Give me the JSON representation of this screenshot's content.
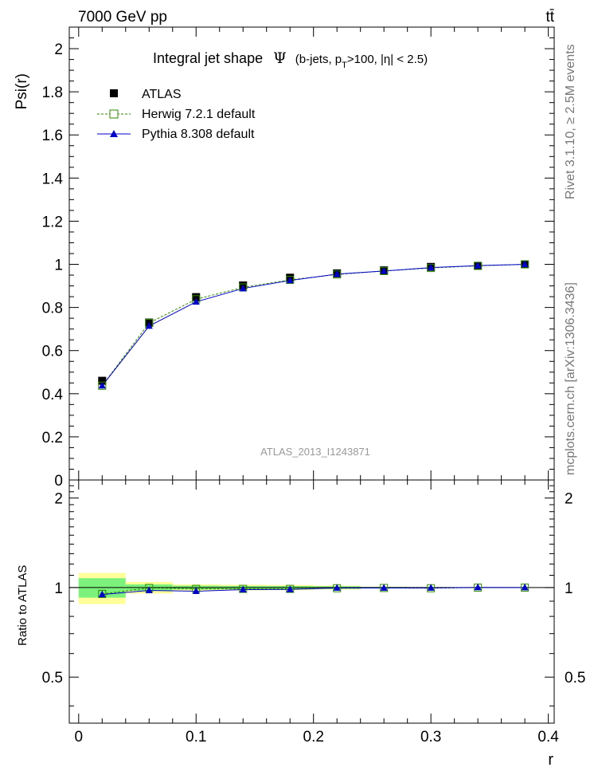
{
  "header": {
    "energy_label": "7000 GeV pp",
    "process_label": "tt̄"
  },
  "side": {
    "rivet": "Rivet 3.1.10, ≥ 2.5M events",
    "mcplots": "mcplots.cern.ch [arXiv:1306.3436]"
  },
  "colors": {
    "atlas": "#000000",
    "herwig": "#2e8b00",
    "pythia": "#0000cc",
    "band_inner": "#7cf27c",
    "band_outer": "#ffff99"
  },
  "chart_data": [
    {
      "type": "scatter",
      "name": "main",
      "title_main": "Integral jet shape",
      "title_symbol": "Ψ",
      "title_sel_open": "(b-jets, p",
      "title_sel_sub": "T",
      "title_sel_close": ">100, |η| < 2.5)",
      "xlabel": "r",
      "ylabel": "Psi(r)",
      "watermark": "ATLAS_2013_I1243871",
      "xlim": [
        -0.008,
        0.405
      ],
      "ylim": [
        0,
        2.1
      ],
      "yticks": [
        0.2,
        0.4,
        0.6,
        0.8,
        1.0,
        1.2,
        1.4,
        1.6,
        1.8,
        2.0
      ],
      "ytick_labels": [
        "0.2",
        "0.4",
        "0.6",
        "0.8",
        "1",
        "1.2",
        "1.4",
        "1.6",
        "1.8",
        "2"
      ],
      "ybottom_label": "0",
      "x": [
        0.02,
        0.06,
        0.1,
        0.14,
        0.18,
        0.22,
        0.26,
        0.3,
        0.34,
        0.38
      ],
      "series": [
        {
          "name": "ATLAS",
          "marker": "square-filled",
          "values": [
            0.46,
            0.73,
            0.848,
            0.902,
            0.938,
            0.958,
            0.972,
            0.988,
            0.993,
            1.0
          ]
        },
        {
          "name": "Herwig 7.2.1 default",
          "marker": "square-open",
          "line": "dashed",
          "values": [
            0.437,
            0.728,
            0.838,
            0.893,
            0.928,
            0.953,
            0.969,
            0.983,
            0.993,
            1.0
          ]
        },
        {
          "name": "Pythia 8.308 default",
          "marker": "triangle-filled",
          "line": "solid",
          "values": [
            0.437,
            0.714,
            0.826,
            0.888,
            0.925,
            0.955,
            0.969,
            0.985,
            0.994,
            1.0
          ]
        }
      ],
      "legend": [
        "ATLAS",
        "Herwig 7.2.1 default",
        "Pythia 8.308 default"
      ]
    },
    {
      "type": "scatter",
      "name": "ratio",
      "ylabel": "Ratio to ATLAS",
      "xlabel": "r",
      "xlim": [
        -0.008,
        0.405
      ],
      "ylim": [
        0.35,
        2.3
      ],
      "yscale": "log",
      "yticks": [
        0.5,
        1,
        2
      ],
      "ytick_labels": [
        "0.5",
        "1",
        "2"
      ],
      "xticks": [
        0,
        0.1,
        0.2,
        0.3,
        0.4
      ],
      "xtick_labels": [
        "0",
        "0.1",
        "0.2",
        "0.3",
        "0.4"
      ],
      "x": [
        0.02,
        0.06,
        0.1,
        0.14,
        0.18,
        0.22,
        0.26,
        0.3,
        0.34,
        0.38
      ],
      "bin_edges": [
        0.0,
        0.04,
        0.08,
        0.12,
        0.16,
        0.2,
        0.24,
        0.28,
        0.32,
        0.36,
        0.4
      ],
      "band_inner": [
        [
          0.925,
          1.075
        ],
        [
          0.975,
          1.025
        ],
        [
          0.985,
          1.015
        ],
        [
          0.987,
          1.013
        ],
        [
          0.988,
          1.012
        ],
        [
          0.99,
          1.01
        ],
        [
          0.995,
          1.005
        ],
        [
          0.997,
          1.003
        ],
        [
          0.998,
          1.002
        ],
        [
          0.999,
          1.001
        ]
      ],
      "band_outer": [
        [
          0.88,
          1.12
        ],
        [
          0.955,
          1.045
        ],
        [
          0.975,
          1.025
        ],
        [
          0.978,
          1.022
        ],
        [
          0.98,
          1.02
        ],
        [
          0.985,
          1.015
        ],
        [
          0.993,
          1.007
        ],
        [
          0.995,
          1.005
        ],
        [
          0.997,
          1.003
        ],
        [
          0.999,
          1.001
        ]
      ],
      "series": [
        {
          "name": "Herwig 7.2.1 default",
          "marker": "square-open",
          "line": "dashed",
          "values": [
            0.952,
            0.997,
            0.99,
            0.99,
            0.99,
            0.995,
            0.997,
            0.995,
            1.0,
            1.0
          ]
        },
        {
          "name": "Pythia 8.308 default",
          "marker": "triangle-filled",
          "line": "solid",
          "values": [
            0.948,
            0.978,
            0.972,
            0.984,
            0.986,
            0.997,
            0.997,
            0.997,
            1.001,
            1.0
          ]
        }
      ]
    }
  ]
}
